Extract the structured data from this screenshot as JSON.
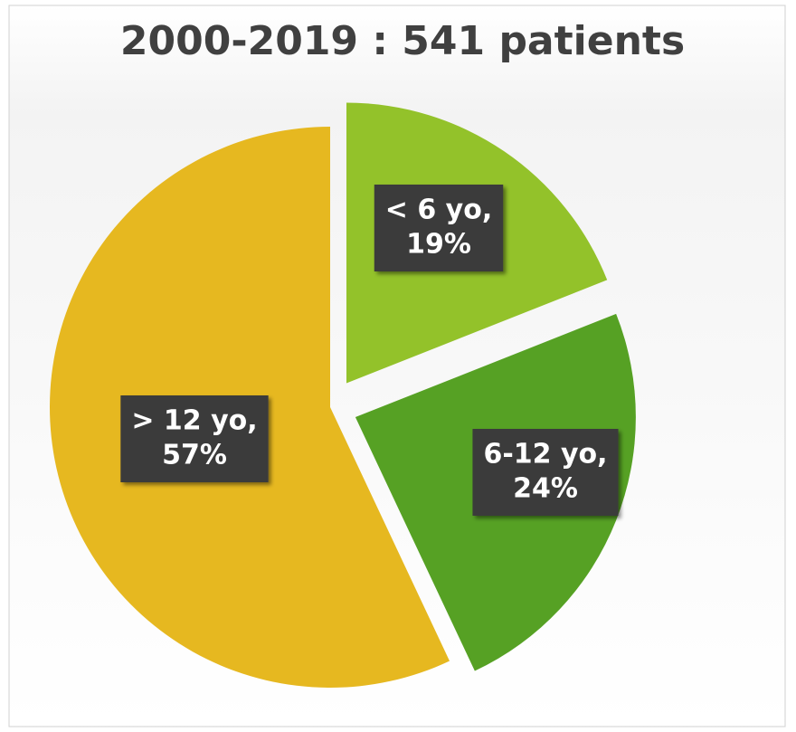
{
  "chart_data": {
    "type": "pie",
    "title": "2000-2019 : 541 patients",
    "categories": [
      "< 6 yo,",
      "6-12 yo,",
      "> 12 yo,"
    ],
    "values": [
      19,
      24,
      57
    ],
    "value_labels": [
      "19%",
      "24%",
      "57%"
    ],
    "colors": [
      "#93c22a",
      "#56a124",
      "#e6b820"
    ]
  }
}
